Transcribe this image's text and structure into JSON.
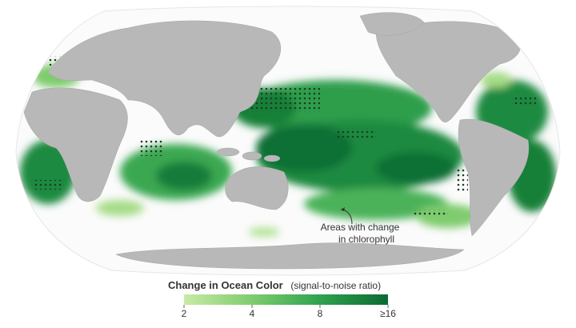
{
  "annotation": {
    "lines": [
      "Areas with change",
      "in chlorophyll"
    ]
  },
  "legend": {
    "title": "Change in Ocean Color",
    "subtitle": "(signal-to-noise ratio)",
    "range": [
      2,
      16
    ],
    "log_scale": true,
    "colors": [
      "#c8eaa6",
      "#7fcc6e",
      "#2ea24e",
      "#0b6b33"
    ],
    "ticks": [
      2,
      4,
      8,
      {
        "value": 16,
        "label": "≥16"
      }
    ]
  }
}
